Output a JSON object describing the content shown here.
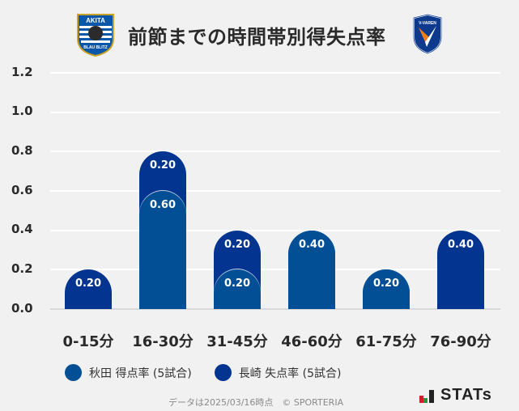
{
  "header": {
    "title": "前節までの時間帯別得失点率",
    "left_logo": "akita-blaublitz-crest",
    "left_logo_text_top": "AKITA",
    "left_logo_text_bottom": "BLAU BLITZ",
    "right_logo": "v-varen-nagasaki-crest",
    "right_logo_text": "V-VAREN"
  },
  "colors": {
    "background": "#f1f1f1",
    "series_akita": "#034f96",
    "series_nagasaki": "#03348f",
    "gridline": "#ffffff"
  },
  "axis": {
    "y_ticks": [
      "1.2",
      "1.0",
      "0.8",
      "0.6",
      "0.4",
      "0.2",
      "0.0"
    ]
  },
  "legend": {
    "items": [
      {
        "label": "秋田 得点率 (5試合)",
        "color": "#034f96"
      },
      {
        "label": "長崎 失点率 (5試合)",
        "color": "#03348f"
      }
    ]
  },
  "footer": {
    "note": "データは2025/03/16時点　© SPORTERIA",
    "brand": "STATs"
  },
  "chart_data": {
    "type": "bar",
    "stacked": true,
    "title": "前節までの時間帯別得失点率",
    "xlabel": "",
    "ylabel": "",
    "ylim": [
      0,
      1.2
    ],
    "grid": true,
    "legend_position": "bottom",
    "categories": [
      "0-15分",
      "16-30分",
      "31-45分",
      "46-60分",
      "61-75分",
      "76-90分"
    ],
    "series": [
      {
        "name": "秋田 得点率 (5試合)",
        "values": [
          0,
          0.6,
          0.2,
          0.4,
          0.2,
          0
        ],
        "labels": [
          "",
          "0.60",
          "0.20",
          "0.40",
          "0.20",
          ""
        ]
      },
      {
        "name": "長崎 失点率 (5試合)",
        "values": [
          0.2,
          0.2,
          0.2,
          0,
          0,
          0.4
        ],
        "labels": [
          "0.20",
          "0.20",
          "0.20",
          "",
          "",
          "0.40"
        ]
      }
    ]
  }
}
